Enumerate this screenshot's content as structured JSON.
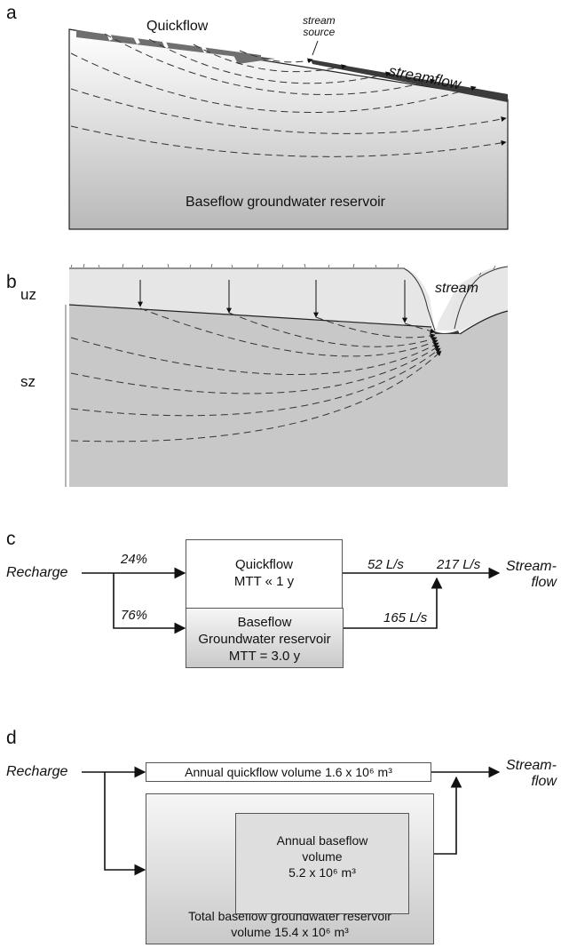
{
  "panel_a": {
    "letter": "a",
    "quickflow": "Quickflow",
    "stream_source_1": "stream",
    "stream_source_2": "source",
    "streamflow": "streamflow",
    "reservoir": "Baseflow groundwater reservoir"
  },
  "panel_b": {
    "letter": "b",
    "uz": "uz",
    "sz": "sz",
    "stream": "stream"
  },
  "panel_c": {
    "letter": "c",
    "recharge": "Recharge",
    "pct_quick": "24%",
    "pct_base": "76%",
    "quick_title": "Quickflow",
    "quick_mtt": "MTT « 1 y",
    "base_title": "Baseflow",
    "base_sub": "Groundwater reservoir",
    "base_mtt": "MTT = 3.0 y",
    "flow_quick": "52 L/s",
    "flow_total": "217 L/s",
    "flow_base": "165 L/s",
    "out_1": "Stream-",
    "out_2": "flow"
  },
  "panel_d": {
    "letter": "d",
    "recharge": "Recharge",
    "quick_box": "Annual quickflow volume 1.6 x 10⁶ m³",
    "annual_1": "Annual baseflow",
    "annual_2": "volume",
    "annual_3": "5.2 x 10⁶ m³",
    "total_1": "Total baseflow groundwater reservoir",
    "total_2": "volume 15.4 x 10⁶ m³",
    "out_1": "Stream-",
    "out_2": "flow"
  }
}
